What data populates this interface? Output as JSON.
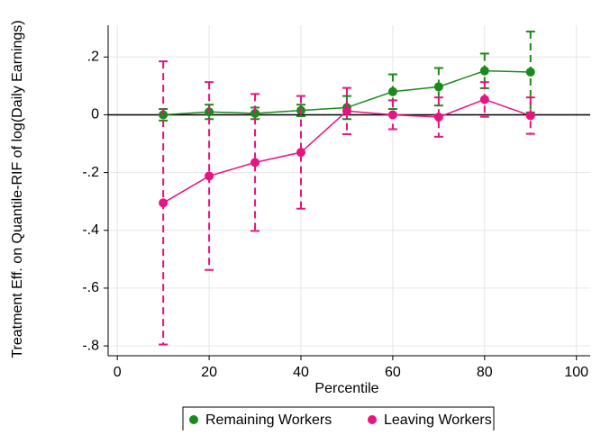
{
  "chart_data": {
    "type": "line",
    "y_label": "Treatment Eff. on Quantile-RIF of log(Daily Earnings)",
    "x_label": "Percentile",
    "x": [
      10,
      20,
      30,
      40,
      50,
      60,
      70,
      80,
      90
    ],
    "series": [
      {
        "name": "Remaining Workers",
        "color": "#1a8a1a",
        "values": [
          0,
          0.01,
          0.005,
          0.015,
          0.025,
          0.08,
          0.097,
          0.152,
          0.148
        ],
        "errors": [
          0.02,
          0.025,
          0.02,
          0.02,
          0.04,
          0.06,
          0.065,
          0.06,
          0.14
        ]
      },
      {
        "name": "Leaving Workers",
        "color": "#e8137f",
        "values": [
          -0.305,
          -0.212,
          -0.165,
          -0.13,
          0.013,
          0,
          -0.008,
          0.053,
          -0.003
        ],
        "errors": [
          0.49,
          0.325,
          0.237,
          0.195,
          0.08,
          0.05,
          0.068,
          0.06,
          0.063
        ]
      }
    ],
    "xlim": [
      -2,
      103
    ],
    "xticks": [
      0,
      20,
      40,
      60,
      80,
      100
    ],
    "ylim": [
      -0.834,
      0.31
    ],
    "yticks": [
      {
        "value": 0.2,
        "label": ".2"
      },
      0,
      {
        "value": -0.2,
        "label": "-.2"
      },
      {
        "value": -0.4,
        "label": "-.4"
      },
      {
        "value": -0.6,
        "label": "-.6"
      },
      {
        "value": -0.8,
        "label": "-.8"
      }
    ],
    "grid": true,
    "legend": "bottom"
  }
}
